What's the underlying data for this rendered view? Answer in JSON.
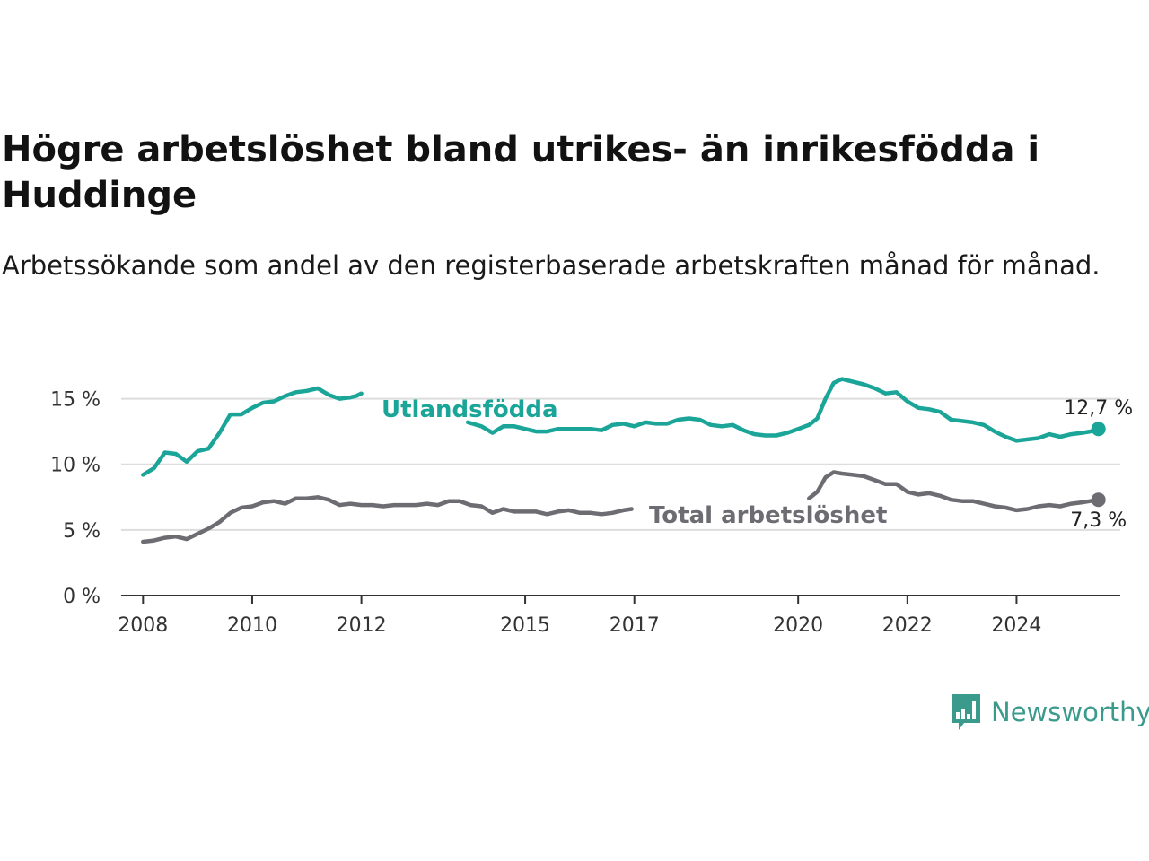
{
  "title": "Högre arbetslöshet bland utrikes- än inrikesfödda i Huddinge",
  "subtitle": "Arbetssökande som andel av den registerbaserade arbetskraften månad för månad.",
  "brand": {
    "name": "Newsworthy",
    "color": "#3a9a8c"
  },
  "chart_data": {
    "type": "line",
    "title": "Högre arbetslöshet bland utrikes- än inrikesfödda i Huddinge",
    "subtitle": "Arbetssökande som andel av den registerbaserade arbetskraften månad för månad.",
    "xlabel": "",
    "ylabel": "",
    "xlim": [
      2007.6,
      2025.9
    ],
    "ylim": [
      0,
      17.5
    ],
    "x_ticks": [
      2008,
      2010,
      2012,
      2015,
      2017,
      2020,
      2022,
      2024
    ],
    "x_tick_labels": [
      "2008",
      "2010",
      "2012",
      "2015",
      "2017",
      "2020",
      "2022",
      "2024"
    ],
    "y_ticks": [
      0,
      5,
      10,
      15
    ],
    "y_tick_labels": [
      "0 %",
      "5 %",
      "10 %",
      "15 %"
    ],
    "grid": "horizontal",
    "series": [
      {
        "name": "Utlandsfödda",
        "color": "#1aa598",
        "end_label": "12,7 %",
        "points": [
          [
            2008.0,
            9.2
          ],
          [
            2008.2,
            9.7
          ],
          [
            2008.4,
            10.9
          ],
          [
            2008.6,
            10.8
          ],
          [
            2008.8,
            10.2
          ],
          [
            2009.0,
            11.0
          ],
          [
            2009.2,
            11.2
          ],
          [
            2009.4,
            12.4
          ],
          [
            2009.6,
            13.8
          ],
          [
            2009.8,
            13.8
          ],
          [
            2010.0,
            14.3
          ],
          [
            2010.2,
            14.7
          ],
          [
            2010.4,
            14.8
          ],
          [
            2010.6,
            15.2
          ],
          [
            2010.8,
            15.5
          ],
          [
            2011.0,
            15.6
          ],
          [
            2011.2,
            15.8
          ],
          [
            2011.4,
            15.3
          ],
          [
            2011.6,
            15.0
          ],
          [
            2011.8,
            15.1
          ],
          [
            2011.9,
            15.2
          ],
          [
            2012.0,
            15.4
          ],
          [
            2012.2,
            null
          ],
          [
            2013.95,
            13.2
          ],
          [
            2014.2,
            12.9
          ],
          [
            2014.4,
            12.4
          ],
          [
            2014.6,
            12.9
          ],
          [
            2014.8,
            12.9
          ],
          [
            2015.0,
            12.7
          ],
          [
            2015.2,
            12.5
          ],
          [
            2015.4,
            12.5
          ],
          [
            2015.6,
            12.7
          ],
          [
            2015.8,
            12.7
          ],
          [
            2016.0,
            12.7
          ],
          [
            2016.2,
            12.7
          ],
          [
            2016.4,
            12.6
          ],
          [
            2016.6,
            13.0
          ],
          [
            2016.8,
            13.1
          ],
          [
            2017.0,
            12.9
          ],
          [
            2017.2,
            13.2
          ],
          [
            2017.4,
            13.1
          ],
          [
            2017.6,
            13.1
          ],
          [
            2017.8,
            13.4
          ],
          [
            2018.0,
            13.5
          ],
          [
            2018.2,
            13.4
          ],
          [
            2018.4,
            13.0
          ],
          [
            2018.6,
            12.9
          ],
          [
            2018.8,
            13.0
          ],
          [
            2019.0,
            12.6
          ],
          [
            2019.2,
            12.3
          ],
          [
            2019.4,
            12.2
          ],
          [
            2019.6,
            12.2
          ],
          [
            2019.8,
            12.4
          ],
          [
            2020.0,
            12.7
          ],
          [
            2020.2,
            13.0
          ],
          [
            2020.35,
            13.5
          ],
          [
            2020.5,
            15.0
          ],
          [
            2020.65,
            16.2
          ],
          [
            2020.8,
            16.5
          ],
          [
            2021.0,
            16.3
          ],
          [
            2021.2,
            16.1
          ],
          [
            2021.4,
            15.8
          ],
          [
            2021.6,
            15.4
          ],
          [
            2021.8,
            15.5
          ],
          [
            2022.0,
            14.8
          ],
          [
            2022.2,
            14.3
          ],
          [
            2022.4,
            14.2
          ],
          [
            2022.6,
            14.0
          ],
          [
            2022.8,
            13.4
          ],
          [
            2023.0,
            13.3
          ],
          [
            2023.2,
            13.2
          ],
          [
            2023.4,
            13.0
          ],
          [
            2023.6,
            12.5
          ],
          [
            2023.8,
            12.1
          ],
          [
            2024.0,
            11.8
          ],
          [
            2024.2,
            11.9
          ],
          [
            2024.4,
            12.0
          ],
          [
            2024.6,
            12.3
          ],
          [
            2024.8,
            12.1
          ],
          [
            2025.0,
            12.3
          ],
          [
            2025.2,
            12.4
          ],
          [
            2025.35,
            12.5
          ],
          [
            2025.5,
            12.7
          ]
        ]
      },
      {
        "name": "Total arbetslöshet",
        "color": "#6d6c72",
        "end_label": "7,3 %",
        "points": [
          [
            2008.0,
            4.1
          ],
          [
            2008.2,
            4.2
          ],
          [
            2008.4,
            4.4
          ],
          [
            2008.6,
            4.5
          ],
          [
            2008.8,
            4.3
          ],
          [
            2009.0,
            4.7
          ],
          [
            2009.2,
            5.1
          ],
          [
            2009.4,
            5.6
          ],
          [
            2009.6,
            6.3
          ],
          [
            2009.8,
            6.7
          ],
          [
            2010.0,
            6.8
          ],
          [
            2010.2,
            7.1
          ],
          [
            2010.4,
            7.2
          ],
          [
            2010.6,
            7.0
          ],
          [
            2010.8,
            7.4
          ],
          [
            2011.0,
            7.4
          ],
          [
            2011.2,
            7.5
          ],
          [
            2011.4,
            7.3
          ],
          [
            2011.6,
            6.9
          ],
          [
            2011.8,
            7.0
          ],
          [
            2012.0,
            6.9
          ],
          [
            2012.2,
            6.9
          ],
          [
            2012.4,
            6.8
          ],
          [
            2012.6,
            6.9
          ],
          [
            2012.8,
            6.9
          ],
          [
            2013.0,
            6.9
          ],
          [
            2013.2,
            7.0
          ],
          [
            2013.4,
            6.9
          ],
          [
            2013.6,
            7.2
          ],
          [
            2013.8,
            7.2
          ],
          [
            2014.0,
            6.9
          ],
          [
            2014.2,
            6.8
          ],
          [
            2014.4,
            6.3
          ],
          [
            2014.6,
            6.6
          ],
          [
            2014.8,
            6.4
          ],
          [
            2015.0,
            6.4
          ],
          [
            2015.2,
            6.4
          ],
          [
            2015.4,
            6.2
          ],
          [
            2015.6,
            6.4
          ],
          [
            2015.8,
            6.5
          ],
          [
            2016.0,
            6.3
          ],
          [
            2016.2,
            6.3
          ],
          [
            2016.4,
            6.2
          ],
          [
            2016.6,
            6.3
          ],
          [
            2016.8,
            6.5
          ],
          [
            2016.95,
            6.6
          ],
          [
            2017.1,
            null
          ],
          [
            2020.2,
            7.4
          ],
          [
            2020.35,
            7.9
          ],
          [
            2020.5,
            9.0
          ],
          [
            2020.65,
            9.4
          ],
          [
            2020.8,
            9.3
          ],
          [
            2021.0,
            9.2
          ],
          [
            2021.2,
            9.1
          ],
          [
            2021.4,
            8.8
          ],
          [
            2021.6,
            8.5
          ],
          [
            2021.8,
            8.5
          ],
          [
            2022.0,
            7.9
          ],
          [
            2022.2,
            7.7
          ],
          [
            2022.4,
            7.8
          ],
          [
            2022.6,
            7.6
          ],
          [
            2022.8,
            7.3
          ],
          [
            2023.0,
            7.2
          ],
          [
            2023.2,
            7.2
          ],
          [
            2023.4,
            7.0
          ],
          [
            2023.6,
            6.8
          ],
          [
            2023.8,
            6.7
          ],
          [
            2024.0,
            6.5
          ],
          [
            2024.2,
            6.6
          ],
          [
            2024.4,
            6.8
          ],
          [
            2024.6,
            6.9
          ],
          [
            2024.8,
            6.8
          ],
          [
            2025.0,
            7.0
          ],
          [
            2025.2,
            7.1
          ],
          [
            2025.35,
            7.2
          ],
          [
            2025.5,
            7.3
          ]
        ]
      }
    ]
  }
}
